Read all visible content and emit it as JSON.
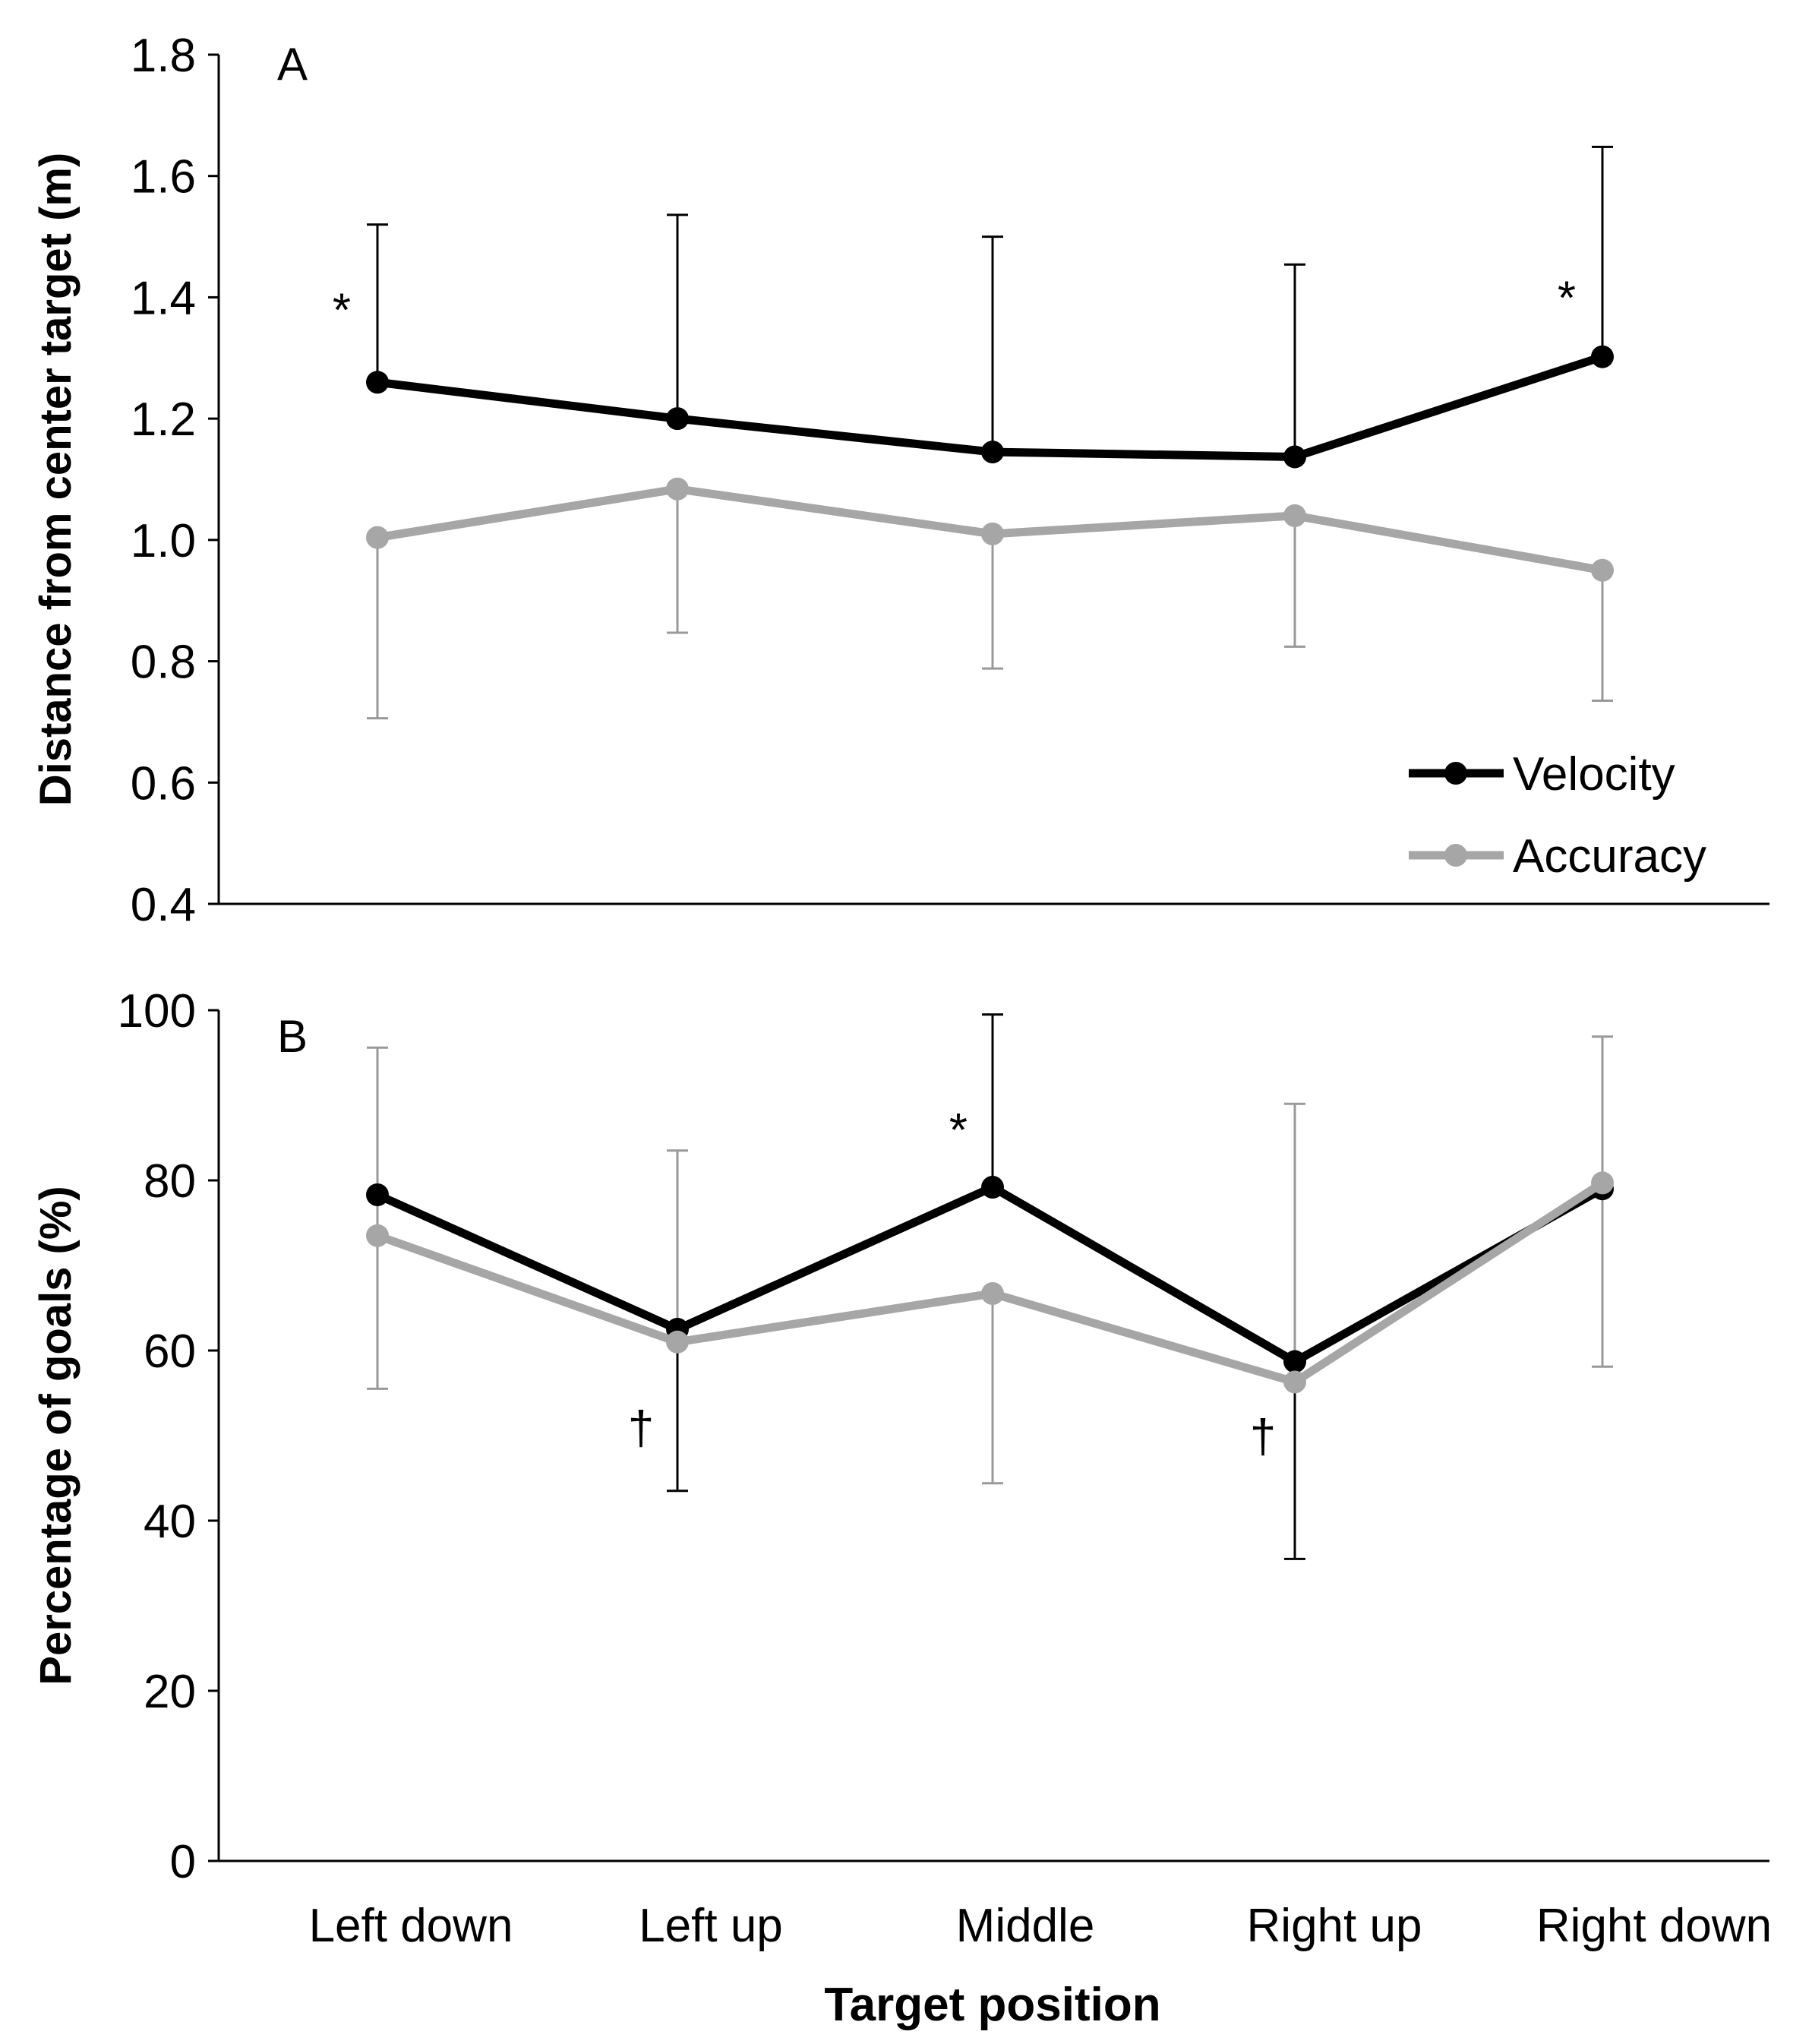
{
  "chart_data": [
    {
      "panel": "A",
      "type": "line",
      "ylabel": "Distance from center target (m)",
      "xlabel": "",
      "ylim": [
        0.4,
        1.8
      ],
      "yticks": [
        "0.4",
        "0.6",
        "0.8",
        "1.0",
        "1.2",
        "1.4",
        "1.6",
        "1.8"
      ],
      "categories": [
        "Left down",
        "Left up",
        "Middle",
        "Right up",
        "Right down"
      ],
      "series": [
        {
          "name": "Velocity",
          "color": "#000000",
          "values": [
            1.26,
            1.2,
            1.145,
            1.137,
            1.302
          ],
          "error_up": [
            0.26,
            0.336,
            0.355,
            0.317,
            0.346
          ],
          "error_down": [
            0,
            0,
            0,
            0,
            0
          ]
        },
        {
          "name": "Accuracy",
          "color": "#a6a6a6",
          "values": [
            1.004,
            1.084,
            1.01,
            1.04,
            0.95
          ],
          "error_up": [
            0,
            0,
            0,
            0,
            0
          ],
          "error_down": [
            0.298,
            0.237,
            0.222,
            0.216,
            0.215
          ]
        }
      ],
      "annotations": [
        {
          "category": "Left down",
          "text": "*",
          "y": 1.38
        },
        {
          "category": "Right down",
          "text": "*",
          "y": 1.4
        }
      ],
      "legend": {
        "position": "bottom-right",
        "entries": [
          "Velocity",
          "Accuracy"
        ]
      }
    },
    {
      "panel": "B",
      "type": "line",
      "ylabel": "Percentage of goals (%)",
      "xlabel": "Target position",
      "ylim": [
        0,
        100
      ],
      "yticks": [
        "0",
        "20",
        "40",
        "60",
        "80",
        "100"
      ],
      "categories": [
        "Left down",
        "Left up",
        "Middle",
        "Right up",
        "Right down"
      ],
      "series": [
        {
          "name": "Velocity",
          "color": "#000000",
          "values": [
            78.3,
            62.5,
            79.2,
            58.7,
            79.0
          ],
          "error_up": [
            0,
            0,
            20.3,
            0,
            0
          ],
          "error_down": [
            0,
            19,
            0,
            23.2,
            0
          ]
        },
        {
          "name": "Accuracy",
          "color": "#a6a6a6",
          "values": [
            73.5,
            61.0,
            66.7,
            56.3,
            79.7
          ],
          "error_up": [
            22.1,
            22.5,
            0,
            32.7,
            17.2
          ],
          "error_down": [
            18,
            0,
            22.3,
            0,
            21.6
          ]
        }
      ],
      "annotations": [
        {
          "category": "Middle",
          "text": "*",
          "y": 86
        },
        {
          "category": "Left up",
          "text": "†",
          "y": 51
        },
        {
          "category": "Right up",
          "text": "†",
          "y": 50
        }
      ]
    }
  ]
}
